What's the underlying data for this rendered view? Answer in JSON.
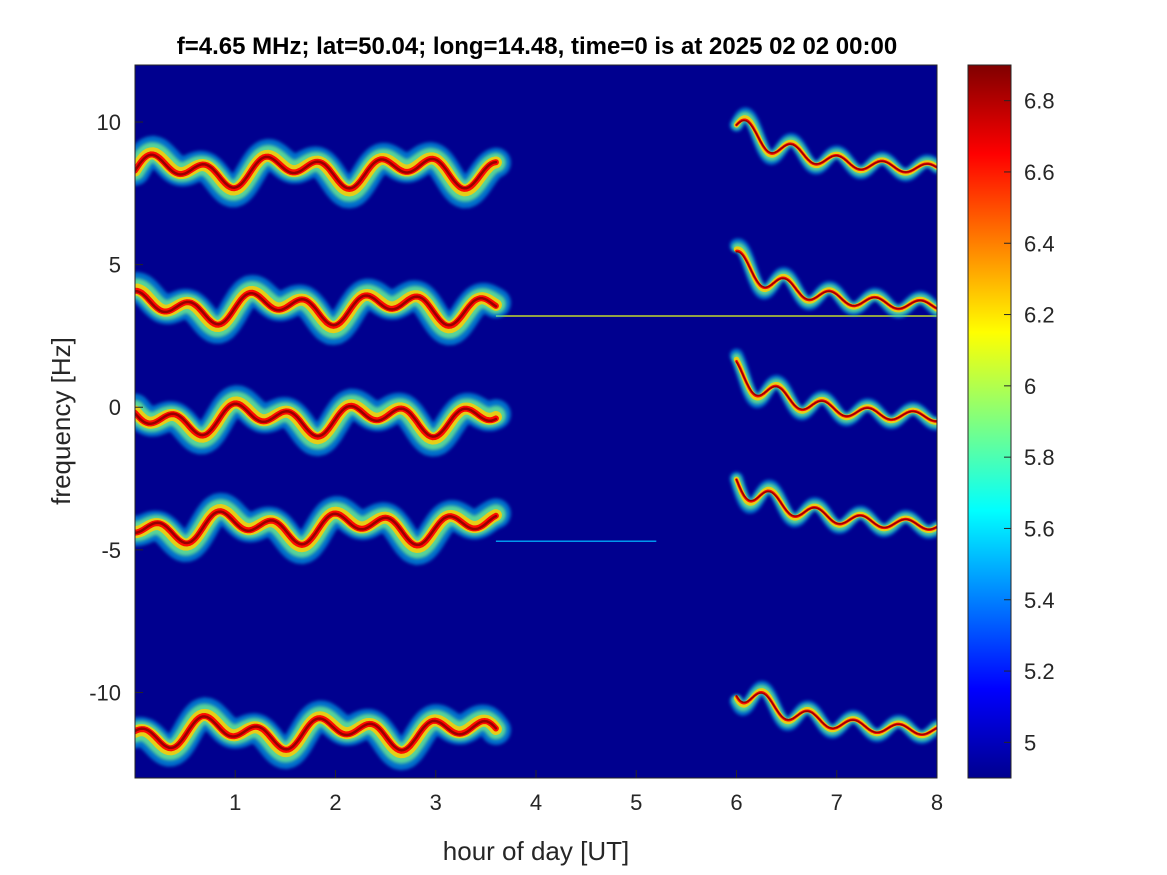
{
  "chart_data": {
    "type": "heatmap",
    "title": "f=4.65 MHz;  lat=50.04; long=14.48, time=0 is at 2025 02 02 00:00",
    "xlabel": "hour of day [UT]",
    "ylabel": "frequency [Hz]",
    "xlim": [
      0,
      8
    ],
    "ylim": [
      -13,
      12
    ],
    "x_ticks": [
      1,
      2,
      3,
      4,
      5,
      6,
      7,
      8
    ],
    "x_tick_labels": [
      "1",
      "2",
      "3",
      "4",
      "5",
      "6",
      "7",
      "8"
    ],
    "y_ticks": [
      10,
      5,
      0,
      -5,
      -10
    ],
    "y_tick_labels": [
      "10",
      "5",
      "0",
      "-5",
      "-10"
    ],
    "colorbar": {
      "range": [
        4.9,
        6.9
      ],
      "ticks": [
        6.8,
        6.6,
        6.4,
        6.2,
        6,
        5.8,
        5.6,
        5.4,
        5.2,
        5
      ],
      "tick_labels": [
        "6.8",
        "6.6",
        "6.4",
        "6.2",
        "6",
        "5.8",
        "5.6",
        "5.4",
        "5.2",
        "5"
      ],
      "colormap": "jet"
    },
    "background_value": 4.95,
    "series": [
      {
        "center_frequency": 8.3,
        "segments": [
          [
            0,
            3.6
          ],
          [
            6.0,
            8
          ]
        ]
      },
      {
        "center_frequency": 3.5,
        "segments": [
          [
            0,
            3.6
          ],
          [
            6.0,
            8
          ]
        ]
      },
      {
        "center_frequency": -0.4,
        "segments": [
          [
            0,
            3.6
          ],
          [
            6.0,
            8
          ]
        ]
      },
      {
        "center_frequency": -4.2,
        "segments": [
          [
            0,
            3.6
          ],
          [
            6.0,
            8
          ]
        ]
      },
      {
        "center_frequency": -11.4,
        "segments": [
          [
            0,
            3.6
          ],
          [
            6.0,
            8
          ]
        ]
      }
    ],
    "constant_lines": [
      {
        "frequency": 3.2,
        "x_range": [
          3.6,
          8
        ],
        "value": 6.1
      },
      {
        "frequency": -4.7,
        "x_range": [
          3.6,
          5.2
        ],
        "value": 5.5
      }
    ],
    "grid": false
  }
}
